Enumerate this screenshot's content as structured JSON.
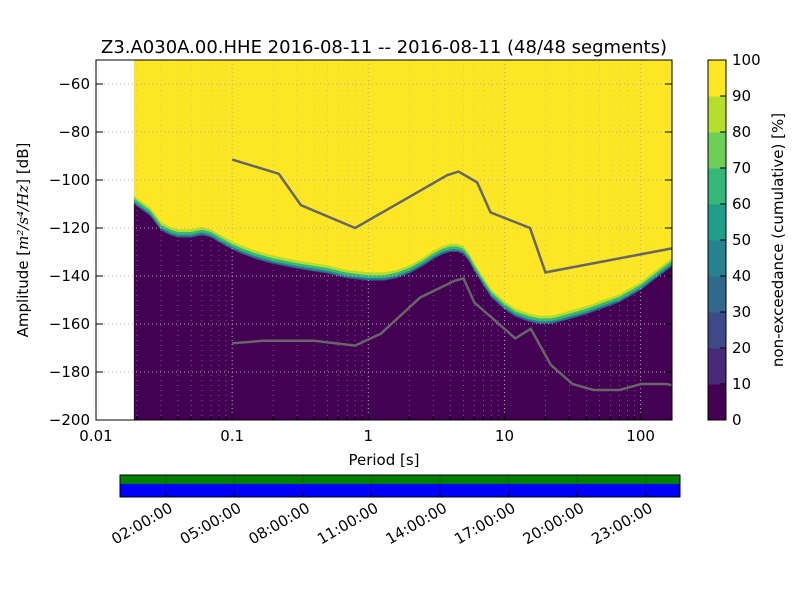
{
  "colors": {
    "viridis": [
      "#440154",
      "#482878",
      "#3e4989",
      "#31688e",
      "#26828e",
      "#1f9e89",
      "#35b779",
      "#6ece58",
      "#b5de2b",
      "#fde725"
    ],
    "model_line": "#666666",
    "timeline_top": "#008000",
    "timeline_bottom": "#0000ff",
    "grid": "#b0b0b0"
  },
  "chart_data": {
    "type": "heatmap",
    "title": "Z3.A030A.00.HHE   2016-08-11 -- 2016-08-11  (48/48 segments)",
    "xlabel": "Period [s]",
    "ylabel_prefix": "Amplitude [",
    "ylabel_math": "m²/s⁴/Hz",
    "ylabel_suffix": "] [dB]",
    "x_scale": "log",
    "xlim": [
      0.01,
      170
    ],
    "ylim": [
      -200,
      -50
    ],
    "x_ticks": [
      0.01,
      0.1,
      1,
      10,
      100
    ],
    "x_tick_labels": [
      "0.01",
      "0.1",
      "1",
      "10",
      "100"
    ],
    "y_ticks": [
      -200,
      -180,
      -160,
      -140,
      -120,
      -100,
      -80,
      -60
    ],
    "y_tick_labels": [
      "−200",
      "−180",
      "−160",
      "−140",
      "−120",
      "−100",
      "−80",
      "−60"
    ],
    "data_x_start": 0.019,
    "grid": true,
    "colorbar": {
      "label": "non-exceedance (cumulative) [%]",
      "range": [
        0,
        100
      ],
      "ticks": [
        0,
        10,
        20,
        30,
        40,
        50,
        60,
        70,
        80,
        90,
        100
      ]
    },
    "psd_boundary": {
      "period": [
        0.019,
        0.02,
        0.025,
        0.03,
        0.035,
        0.04,
        0.05,
        0.06,
        0.07,
        0.08,
        0.1,
        0.12,
        0.15,
        0.2,
        0.3,
        0.5,
        0.7,
        1.0,
        1.3,
        1.6,
        2.0,
        2.5,
        3.0,
        3.5,
        4.0,
        4.5,
        5.0,
        5.5,
        6.0,
        7.0,
        8.0,
        10,
        12,
        15,
        18,
        22,
        26,
        30,
        40,
        50,
        70,
        100,
        130,
        170
      ],
      "db": [
        -110,
        -111,
        -115,
        -121,
        -123,
        -124,
        -124,
        -123,
        -124,
        -126,
        -129,
        -131,
        -133,
        -135,
        -137,
        -139,
        -141,
        -142,
        -142,
        -141,
        -139,
        -136,
        -133,
        -131,
        -130,
        -130,
        -131,
        -134,
        -138,
        -144,
        -149,
        -154,
        -157,
        -159,
        -160,
        -160,
        -159,
        -158,
        -156,
        -154,
        -151,
        -146,
        -141,
        -136
      ]
    },
    "transition_width_db": 3.5,
    "noise_models": [
      {
        "period": [
          0.1,
          0.17,
          0.4,
          0.8,
          1.24,
          2.4,
          4.3,
          5.0,
          6.0,
          10.0,
          12.0,
          15.6,
          21.9,
          31.6,
          45.0,
          70.0,
          101.0,
          154.0,
          170.0
        ],
        "db": [
          -168,
          -167,
          -167,
          -169,
          -164,
          -149,
          -142,
          -141,
          -151,
          -162,
          -166,
          -162,
          -177,
          -185,
          -187.5,
          -187.5,
          -185,
          -185,
          -185.5
        ]
      },
      {
        "period": [
          0.1,
          0.22,
          0.32,
          0.8,
          3.8,
          4.6,
          6.3,
          7.9,
          15.4,
          20.0,
          170.0
        ],
        "db": [
          -91.5,
          -97.4,
          -110.5,
          -120,
          -98,
          -96.5,
          -101,
          -113.5,
          -120,
          -138.5,
          -128.5
        ]
      }
    ],
    "timeline": {
      "tick_labels": [
        "02:00:00",
        "05:00:00",
        "08:00:00",
        "11:00:00",
        "14:00:00",
        "17:00:00",
        "20:00:00",
        "23:00:00"
      ],
      "tick_hours": [
        2,
        5,
        8,
        11,
        14,
        17,
        20,
        23
      ],
      "hour_range": [
        0,
        24.5
      ],
      "grid_hours": [
        2,
        5,
        8,
        11,
        14,
        17,
        20,
        23
      ]
    }
  }
}
